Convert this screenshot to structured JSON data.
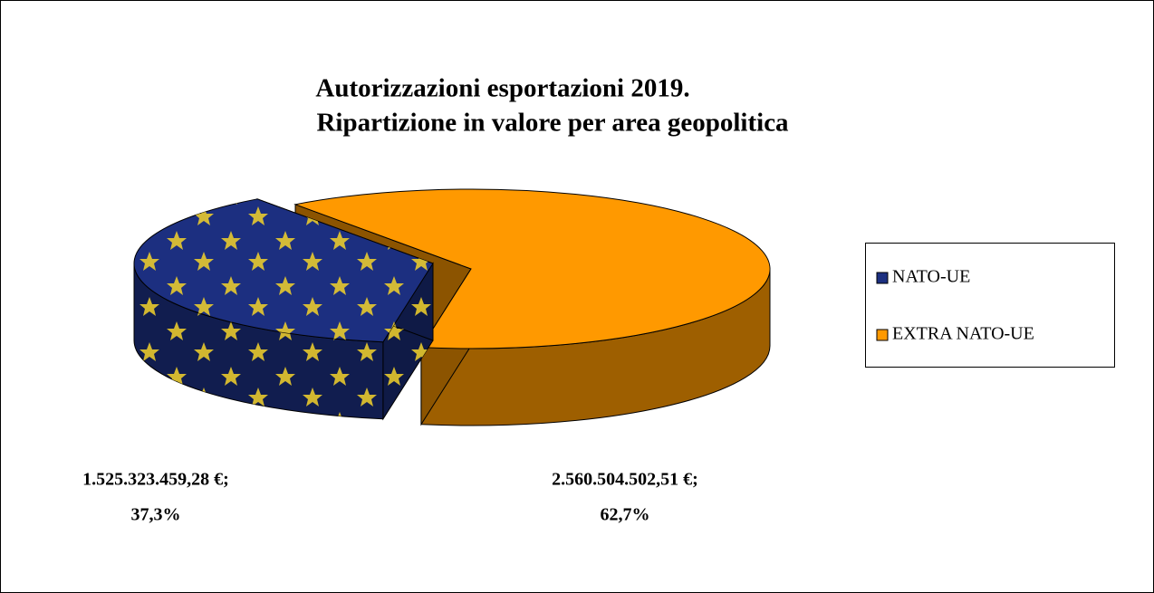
{
  "chart_data": {
    "type": "pie",
    "title": [
      "Autorizzazioni esportazioni 2019.",
      "Ripartizione in valore per area geopolitica"
    ],
    "categories": [
      "NATO-UE",
      "EXTRA NATO-UE"
    ],
    "values": [
      1525323459.28,
      2560504502.51
    ],
    "value_labels": [
      "1.525.323.459,28 €;",
      "2.560.504.502,51 €;"
    ],
    "percentages": [
      37.3,
      62.7
    ],
    "percentage_labels": [
      "37,3%",
      "62,7%"
    ],
    "colors": [
      "#1c2f80",
      "#ff9900"
    ],
    "legend": "right"
  }
}
